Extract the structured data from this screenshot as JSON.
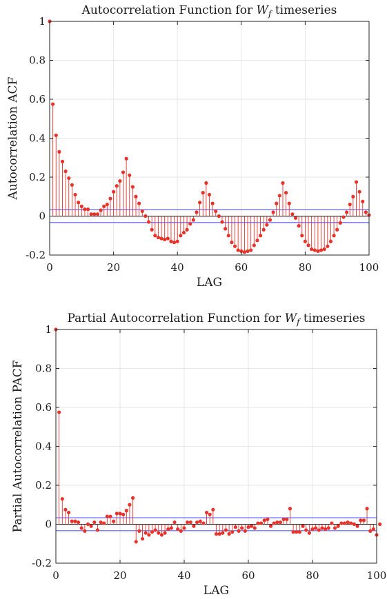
{
  "colors": {
    "stem": "#e8332a",
    "marker": "#e8332a",
    "bound": "#3a3aff",
    "baseline": "#000000",
    "grid": "#e6e6e6",
    "axis": "#262626"
  },
  "chart_data": [
    {
      "type": "stem",
      "title_prefix": "Autocorrelation Function for ",
      "title_var": "W",
      "title_sub": "f",
      "title_suffix": " timeseries",
      "xlabel": "LAG",
      "ylabel": "Autocorrelation ACF",
      "xlim": [
        0,
        100
      ],
      "ylim": [
        -0.2,
        1
      ],
      "xticks": [
        0,
        20,
        40,
        60,
        80,
        100
      ],
      "yticks": [
        -0.2,
        0,
        0.2,
        0.4,
        0.6,
        0.8,
        1
      ],
      "ytick_labels": [
        "-0.2",
        "0",
        "0.2",
        "0.4",
        "0.6",
        "0.8",
        "1"
      ],
      "grid": true,
      "confidence_bounds": [
        0.033,
        -0.033
      ],
      "lags_from": 0,
      "values": [
        1,
        0.575,
        0.415,
        0.33,
        0.28,
        0.23,
        0.195,
        0.16,
        0.11,
        0.07,
        0.05,
        0.035,
        0.035,
        0.01,
        0.01,
        0.01,
        0.03,
        0.05,
        0.06,
        0.09,
        0.125,
        0.155,
        0.18,
        0.225,
        0.295,
        0.21,
        0.15,
        0.1,
        0.065,
        0.025,
        0,
        -0.03,
        -0.07,
        -0.1,
        -0.11,
        -0.115,
        -0.12,
        -0.115,
        -0.13,
        -0.135,
        -0.13,
        -0.1,
        -0.085,
        -0.07,
        -0.04,
        -0.02,
        0.02,
        0.07,
        0.12,
        0.17,
        0.11,
        0.065,
        0.025,
        0,
        -0.03,
        -0.065,
        -0.1,
        -0.135,
        -0.155,
        -0.175,
        -0.18,
        -0.185,
        -0.18,
        -0.175,
        -0.15,
        -0.125,
        -0.1,
        -0.07,
        -0.045,
        -0.02,
        0.02,
        0.065,
        0.105,
        0.17,
        0.12,
        0.065,
        0.01,
        -0.01,
        -0.05,
        -0.1,
        -0.13,
        -0.15,
        -0.17,
        -0.175,
        -0.18,
        -0.175,
        -0.17,
        -0.155,
        -0.13,
        -0.1,
        -0.07,
        -0.035,
        -0.005,
        0.02,
        0.06,
        0.1,
        0.175,
        0.125,
        0.075,
        0.02,
        0.005
      ]
    },
    {
      "type": "stem",
      "title_prefix": "Partial Autocorrelation Function for ",
      "title_var": "W",
      "title_sub": "f",
      "title_suffix": " timeseries",
      "xlabel": "LAG",
      "ylabel": "Partial Autocorrelation PACF",
      "xlim": [
        0,
        100
      ],
      "ylim": [
        -0.2,
        1
      ],
      "xticks": [
        0,
        20,
        40,
        60,
        80,
        100
      ],
      "yticks": [
        -0.2,
        0,
        0.2,
        0.4,
        0.6,
        0.8,
        1
      ],
      "ytick_labels": [
        "-0.2",
        "0",
        "0.2",
        "0.4",
        "0.6",
        "0.8",
        "1"
      ],
      "grid": true,
      "confidence_bounds": [
        0.033,
        -0.033
      ],
      "lags_from": 0,
      "values": [
        1,
        0.575,
        0.13,
        0.075,
        0.06,
        0.015,
        0.015,
        0.01,
        -0.02,
        -0.035,
        0,
        -0.01,
        0.01,
        -0.03,
        0.01,
        0.005,
        0.04,
        0.04,
        0.015,
        0.055,
        0.055,
        0.05,
        0.07,
        0.1,
        0.135,
        -0.09,
        -0.035,
        -0.075,
        -0.045,
        -0.055,
        -0.04,
        -0.03,
        -0.045,
        -0.055,
        -0.045,
        -0.025,
        -0.02,
        0.01,
        -0.025,
        -0.035,
        -0.02,
        0.01,
        0.01,
        -0.01,
        0.01,
        0.015,
        0.005,
        0.06,
        0.05,
        0.075,
        -0.05,
        -0.05,
        -0.045,
        -0.03,
        -0.05,
        -0.04,
        -0.015,
        -0.035,
        -0.02,
        -0.035,
        -0.015,
        -0.01,
        -0.02,
        0.005,
        0.005,
        0.02,
        0.025,
        -0.01,
        0.005,
        0.01,
        0.01,
        0.025,
        0.025,
        0.08,
        -0.04,
        -0.04,
        -0.04,
        -0.01,
        -0.03,
        -0.045,
        -0.025,
        -0.02,
        -0.03,
        -0.02,
        -0.025,
        -0.02,
        0.005,
        -0.02,
        -0.01,
        0.005,
        0.005,
        0.01,
        0.005,
        0,
        -0.01,
        0.02,
        0.02,
        0.08,
        -0.035,
        -0.025,
        -0.055,
        0
      ]
    }
  ]
}
